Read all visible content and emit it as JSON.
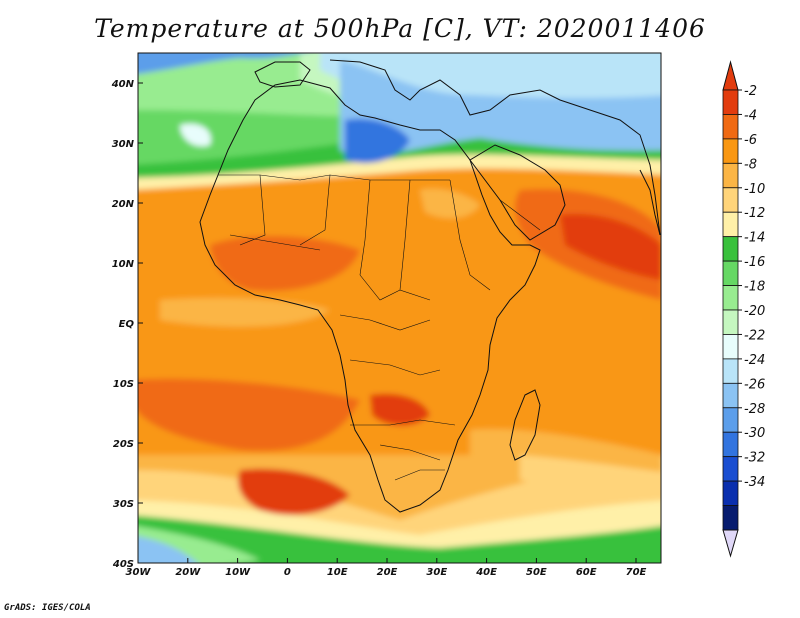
{
  "title": "Temperature at 500hPa [C], VT: 2020011406",
  "footer": "GrADS: IGES/COLA",
  "map": {
    "lon_ticks": [
      "30W",
      "20W",
      "10W",
      "0",
      "10E",
      "20E",
      "30E",
      "40E",
      "50E",
      "60E",
      "70E"
    ],
    "lat_ticks": [
      "40N",
      "30N",
      "20N",
      "10N",
      "EQ",
      "10S",
      "20S",
      "30S",
      "40S"
    ]
  },
  "colorbar": {
    "labels": [
      "-2",
      "-4",
      "-6",
      "-8",
      "-10",
      "-12",
      "-14",
      "-16",
      "-18",
      "-20",
      "-22",
      "-24",
      "-26",
      "-28",
      "-30",
      "-32",
      "-34"
    ],
    "colors": [
      "#e23c0e",
      "#f06a13",
      "#f99712",
      "#fbb545",
      "#ffd47a",
      "#fff0a8",
      "#39c13c",
      "#66d864",
      "#98ec90",
      "#c5f7c0",
      "#e8fdfc",
      "#b9e4f8",
      "#8bc3f3",
      "#5c9eea",
      "#3274df",
      "#1a4ed1",
      "#0a2fae",
      "#071c6f"
    ],
    "top_arrow_color": "#e23c0e",
    "bottom_arrow_color": "#e0d8f8"
  }
}
